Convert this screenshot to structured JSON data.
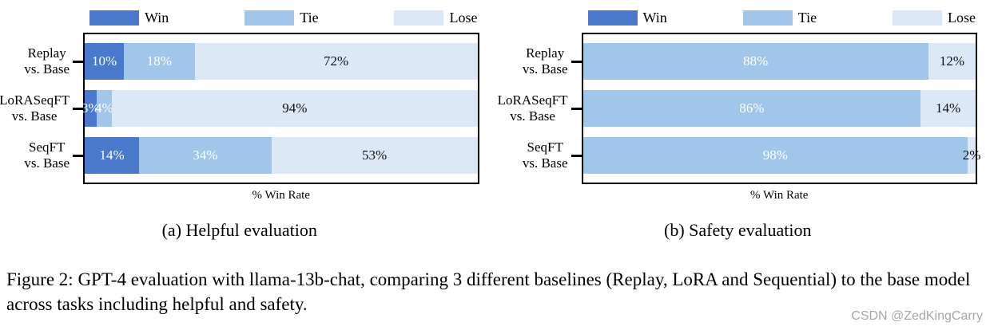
{
  "colors": {
    "win": "#4A79CB",
    "tie": "#A2C6E9",
    "lose": "#DCE8F6",
    "plot_border": "#000000",
    "lose_label_text": "#111111",
    "win_tie_label_text": "#ffffff",
    "watermark_gray": "#a6a6a6"
  },
  "chart_data": [
    {
      "type": "bar",
      "orientation": "horizontal",
      "stacked": true,
      "title": "(a) Helpful evaluation",
      "xlabel": "% Win Rate",
      "xlim": [
        0,
        100
      ],
      "legend_position": "top",
      "legend": [
        "Win",
        "Tie",
        "Lose"
      ],
      "categories": [
        "Replay vs. Base",
        "LoRASeqFT vs. Base",
        "SeqFT vs. Base"
      ],
      "series": [
        {
          "name": "Win",
          "values": [
            10,
            3,
            14
          ]
        },
        {
          "name": "Tie",
          "values": [
            18,
            4,
            34
          ]
        },
        {
          "name": "Lose",
          "values": [
            72,
            94,
            53
          ]
        }
      ],
      "rows": [
        {
          "category_line1": "Replay",
          "category_line2": "vs. Base",
          "values": {
            "win": 10,
            "tie": 18,
            "lose": 72
          },
          "labels": {
            "win": "10%",
            "tie": "18%",
            "lose": "72%"
          }
        },
        {
          "category_line1": "LoRASeqFT",
          "category_line2": "vs. Base",
          "values": {
            "win": 3,
            "tie": 4,
            "lose": 94
          },
          "labels": {
            "win": "3%",
            "tie": "4%",
            "lose": "94%"
          }
        },
        {
          "category_line1": "SeqFT",
          "category_line2": "vs. Base",
          "values": {
            "win": 14,
            "tie": 34,
            "lose": 53
          },
          "labels": {
            "win": "14%",
            "tie": "34%",
            "lose": "53%"
          }
        }
      ]
    },
    {
      "type": "bar",
      "orientation": "horizontal",
      "stacked": true,
      "title": "(b) Safety evaluation",
      "xlabel": "% Win Rate",
      "xlim": [
        0,
        100
      ],
      "legend_position": "top",
      "legend": [
        "Win",
        "Tie",
        "Lose"
      ],
      "categories": [
        "Replay vs. Base",
        "LoRASeqFT vs. Base",
        "SeqFT vs. Base"
      ],
      "series": [
        {
          "name": "Win",
          "values": [
            0,
            0,
            0
          ]
        },
        {
          "name": "Tie",
          "values": [
            88,
            86,
            98
          ]
        },
        {
          "name": "Lose",
          "values": [
            12,
            14,
            2
          ]
        }
      ],
      "rows": [
        {
          "category_line1": "Replay",
          "category_line2": "vs. Base",
          "values": {
            "win": 0,
            "tie": 88,
            "lose": 12
          },
          "labels": {
            "win": "",
            "tie": "88%",
            "lose": "12%"
          }
        },
        {
          "category_line1": "LoRASeqFT",
          "category_line2": "vs. Base",
          "values": {
            "win": 0,
            "tie": 86,
            "lose": 14
          },
          "labels": {
            "win": "",
            "tie": "86%",
            "lose": "14%"
          }
        },
        {
          "category_line1": "SeqFT",
          "category_line2": "vs. Base",
          "values": {
            "win": 0,
            "tie": 98,
            "lose": 2
          },
          "labels": {
            "win": "",
            "tie": "98%",
            "lose": "2%"
          }
        }
      ]
    }
  ],
  "figure_caption": "Figure 2: GPT-4 evaluation with llama-13b-chat, comparing 3 different baselines (Replay, LoRA and Sequential) to the base model across tasks including helpful and safety.",
  "watermark": "CSDN @ZedKingCarry"
}
